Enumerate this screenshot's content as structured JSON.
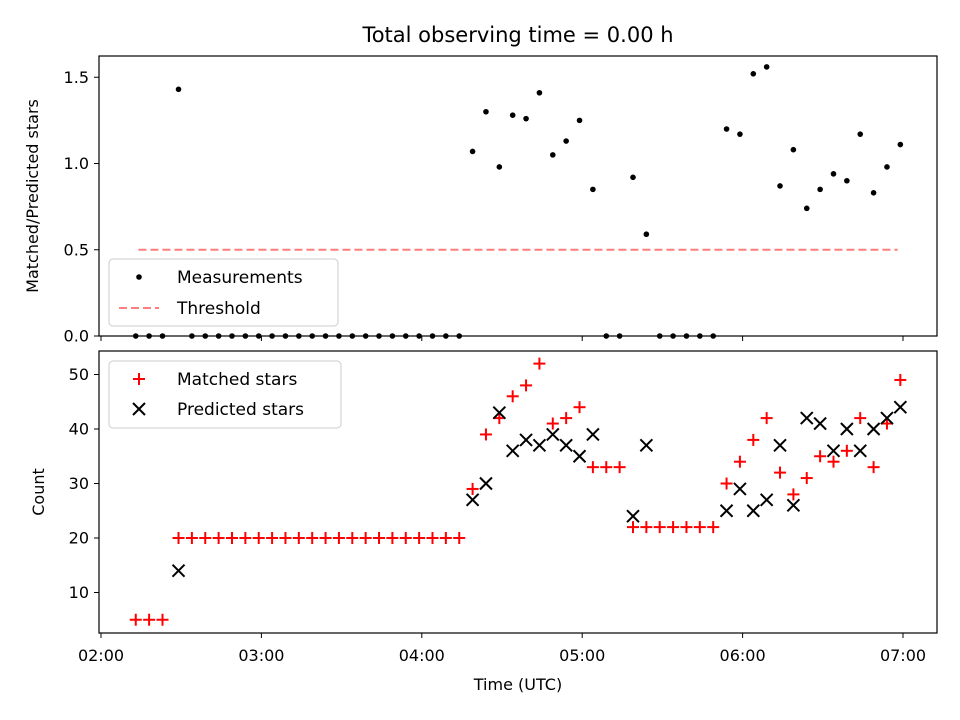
{
  "chart_data": [
    {
      "type": "scatter",
      "title": "Total observing time = 0.00 h",
      "ylabel": "Matched/Predicted stars",
      "xlim": [
        "02:00",
        "07:00"
      ],
      "ylim": [
        0,
        1.6
      ],
      "yticks": [
        "0.0",
        "0.5",
        "1.0",
        "1.5"
      ],
      "grid": false,
      "legend_placement": "lower-left",
      "series": [
        {
          "name": "Measurements",
          "marker": "dot",
          "color": "#000000",
          "points": [
            [
              "02:13",
              0
            ],
            [
              "02:18",
              0
            ],
            [
              "02:23",
              0
            ],
            [
              "02:29",
              1.43
            ],
            [
              "02:34",
              0
            ],
            [
              "02:39",
              0
            ],
            [
              "02:44",
              0
            ],
            [
              "02:49",
              0
            ],
            [
              "02:54",
              0
            ],
            [
              "02:59",
              0
            ],
            [
              "03:04",
              0
            ],
            [
              "03:09",
              0
            ],
            [
              "03:14",
              0
            ],
            [
              "03:19",
              0
            ],
            [
              "03:24",
              0
            ],
            [
              "03:29",
              0
            ],
            [
              "03:34",
              0
            ],
            [
              "03:39",
              0
            ],
            [
              "03:44",
              0
            ],
            [
              "03:49",
              0
            ],
            [
              "03:54",
              0
            ],
            [
              "03:59",
              0
            ],
            [
              "04:04",
              0
            ],
            [
              "04:09",
              0
            ],
            [
              "04:14",
              0
            ],
            [
              "04:19",
              1.07
            ],
            [
              "04:24",
              1.3
            ],
            [
              "04:29",
              0.98
            ],
            [
              "04:34",
              1.28
            ],
            [
              "04:39",
              1.26
            ],
            [
              "04:44",
              1.41
            ],
            [
              "04:49",
              1.05
            ],
            [
              "04:54",
              1.13
            ],
            [
              "04:59",
              1.25
            ],
            [
              "05:04",
              0.85
            ],
            [
              "05:09",
              0
            ],
            [
              "05:14",
              0
            ],
            [
              "05:19",
              0.92
            ],
            [
              "05:24",
              0.59
            ],
            [
              "05:29",
              0
            ],
            [
              "05:34",
              0
            ],
            [
              "05:39",
              0
            ],
            [
              "05:44",
              0
            ],
            [
              "05:49",
              0
            ],
            [
              "05:54",
              1.2
            ],
            [
              "05:59",
              1.17
            ],
            [
              "06:04",
              1.52
            ],
            [
              "06:09",
              1.56
            ],
            [
              "06:14",
              0.87
            ],
            [
              "06:19",
              1.08
            ],
            [
              "06:24",
              0.74
            ],
            [
              "06:29",
              0.85
            ],
            [
              "06:34",
              0.94
            ],
            [
              "06:39",
              0.9
            ],
            [
              "06:44",
              1.17
            ],
            [
              "06:49",
              0.83
            ],
            [
              "06:54",
              0.98
            ],
            [
              "06:59",
              1.11
            ]
          ]
        },
        {
          "name": "Threshold",
          "marker": "dashed-line",
          "color": "#ff7f7f",
          "points": [
            [
              "02:14",
              0.5
            ],
            [
              "06:58",
              0.5
            ]
          ]
        }
      ]
    },
    {
      "type": "scatter",
      "xlabel": "Time (UTC)",
      "ylabel": "Count",
      "xlim": [
        "02:00",
        "07:00"
      ],
      "ylim": [
        3,
        54
      ],
      "xticks": [
        "02:00",
        "03:00",
        "04:00",
        "05:00",
        "06:00",
        "07:00"
      ],
      "yticks": [
        "10",
        "20",
        "30",
        "40",
        "50"
      ],
      "grid": false,
      "legend_placement": "upper-left",
      "series": [
        {
          "name": "Matched stars",
          "marker": "plus",
          "color": "#ff0000",
          "points": [
            [
              "02:13",
              5
            ],
            [
              "02:18",
              5
            ],
            [
              "02:23",
              5
            ],
            [
              "02:29",
              20
            ],
            [
              "02:34",
              20
            ],
            [
              "02:39",
              20
            ],
            [
              "02:44",
              20
            ],
            [
              "02:49",
              20
            ],
            [
              "02:54",
              20
            ],
            [
              "02:59",
              20
            ],
            [
              "03:04",
              20
            ],
            [
              "03:09",
              20
            ],
            [
              "03:14",
              20
            ],
            [
              "03:19",
              20
            ],
            [
              "03:24",
              20
            ],
            [
              "03:29",
              20
            ],
            [
              "03:34",
              20
            ],
            [
              "03:39",
              20
            ],
            [
              "03:44",
              20
            ],
            [
              "03:49",
              20
            ],
            [
              "03:54",
              20
            ],
            [
              "03:59",
              20
            ],
            [
              "04:04",
              20
            ],
            [
              "04:09",
              20
            ],
            [
              "04:14",
              20
            ],
            [
              "04:19",
              29
            ],
            [
              "04:24",
              39
            ],
            [
              "04:29",
              42
            ],
            [
              "04:34",
              46
            ],
            [
              "04:39",
              48
            ],
            [
              "04:44",
              52
            ],
            [
              "04:49",
              41
            ],
            [
              "04:54",
              42
            ],
            [
              "04:59",
              44
            ],
            [
              "05:04",
              33
            ],
            [
              "05:09",
              33
            ],
            [
              "05:14",
              33
            ],
            [
              "05:19",
              22
            ],
            [
              "05:24",
              22
            ],
            [
              "05:29",
              22
            ],
            [
              "05:34",
              22
            ],
            [
              "05:39",
              22
            ],
            [
              "05:44",
              22
            ],
            [
              "05:49",
              22
            ],
            [
              "05:54",
              30
            ],
            [
              "05:59",
              34
            ],
            [
              "06:04",
              38
            ],
            [
              "06:09",
              42
            ],
            [
              "06:14",
              32
            ],
            [
              "06:19",
              28
            ],
            [
              "06:24",
              31
            ],
            [
              "06:29",
              35
            ],
            [
              "06:34",
              34
            ],
            [
              "06:39",
              36
            ],
            [
              "06:44",
              42
            ],
            [
              "06:49",
              33
            ],
            [
              "06:54",
              41
            ],
            [
              "06:59",
              49
            ]
          ]
        },
        {
          "name": "Predicted stars",
          "marker": "x",
          "color": "#000000",
          "points": [
            [
              "02:29",
              14
            ],
            [
              "04:19",
              27
            ],
            [
              "04:24",
              30
            ],
            [
              "04:29",
              43
            ],
            [
              "04:34",
              36
            ],
            [
              "04:39",
              38
            ],
            [
              "04:44",
              37
            ],
            [
              "04:49",
              39
            ],
            [
              "04:54",
              37
            ],
            [
              "04:59",
              35
            ],
            [
              "05:04",
              39
            ],
            [
              "05:19",
              24
            ],
            [
              "05:24",
              37
            ],
            [
              "05:54",
              25
            ],
            [
              "05:59",
              29
            ],
            [
              "06:04",
              25
            ],
            [
              "06:09",
              27
            ],
            [
              "06:14",
              37
            ],
            [
              "06:19",
              26
            ],
            [
              "06:24",
              42
            ],
            [
              "06:29",
              41
            ],
            [
              "06:34",
              36
            ],
            [
              "06:39",
              40
            ],
            [
              "06:44",
              36
            ],
            [
              "06:49",
              40
            ],
            [
              "06:54",
              42
            ],
            [
              "06:59",
              44
            ]
          ]
        }
      ]
    }
  ]
}
